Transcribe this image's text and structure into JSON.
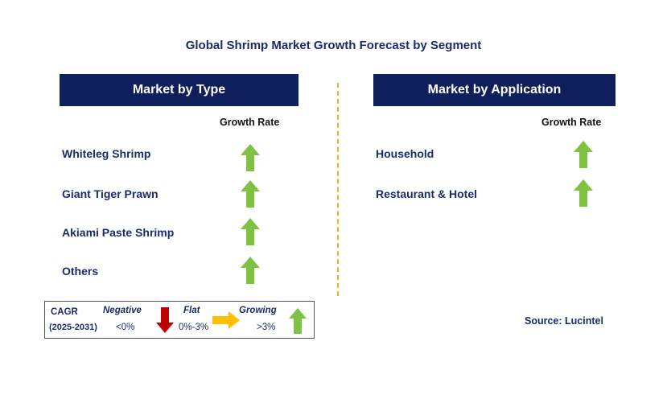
{
  "title": "Global Shrimp Market Growth Forecast by Segment",
  "left_panel": {
    "header": "Market by Type",
    "growth_header": "Growth Rate",
    "rows": [
      {
        "label": "Whiteleg Shrimp",
        "trend": "growing"
      },
      {
        "label": "Giant Tiger Prawn",
        "trend": "growing"
      },
      {
        "label": "Akiami Paste Shrimp",
        "trend": "growing"
      },
      {
        "label": "Others",
        "trend": "growing"
      }
    ]
  },
  "right_panel": {
    "header": "Market by Application",
    "growth_header": "Growth Rate",
    "rows": [
      {
        "label": "Household",
        "trend": "growing"
      },
      {
        "label": "Restaurant & Hotel",
        "trend": "growing"
      }
    ]
  },
  "legend": {
    "cagr_label": "CAGR",
    "period": "(2025-2031)",
    "negative_label": "Negative",
    "negative_range": "<0%",
    "flat_label": "Flat",
    "flat_range": "0%-3%",
    "growing_label": "Growing",
    "growing_range": ">3%"
  },
  "source": "Source: Lucintel",
  "colors": {
    "header_bg": "#0e1f5b",
    "up_arrow": "#7dc242",
    "down_arrow": "#c00000",
    "flat_arrow": "#ffc000",
    "divider": "#f2b01e"
  }
}
